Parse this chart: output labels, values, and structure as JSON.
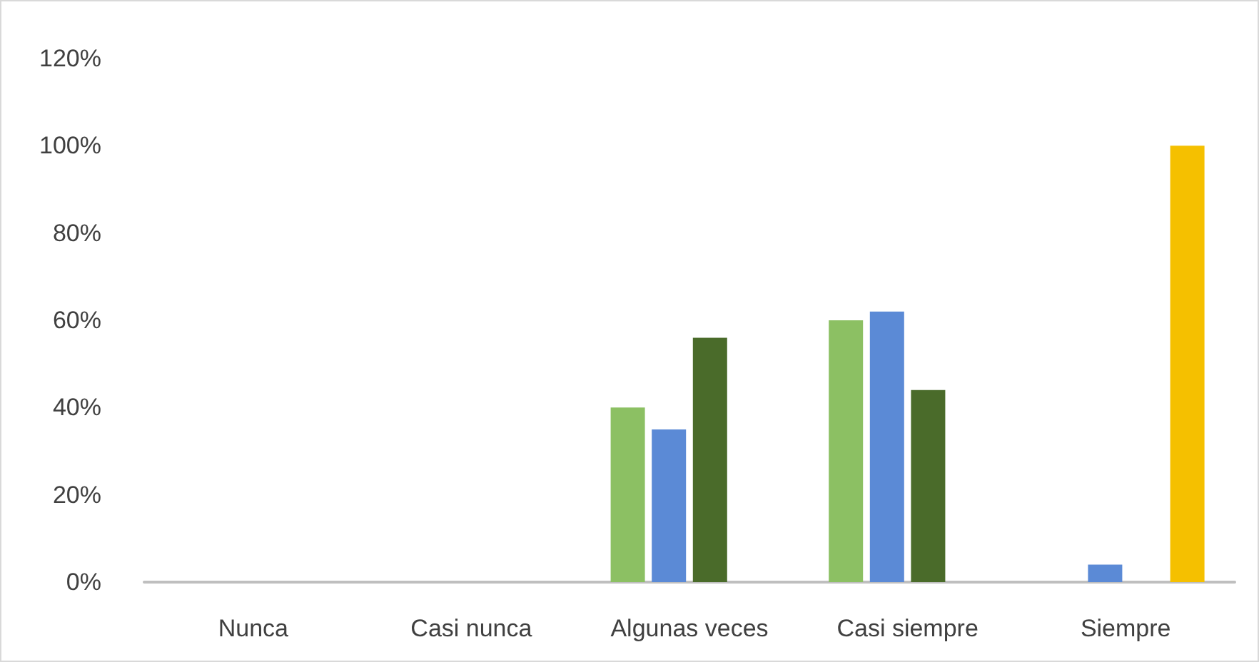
{
  "chart_data": {
    "type": "bar",
    "categories": [
      "Nunca",
      "Casi nunca",
      "Algunas veces",
      "Casi siempre",
      "Siempre"
    ],
    "series": [
      {
        "color": "#8cc063",
        "values": [
          0,
          0,
          40,
          60,
          0
        ]
      },
      {
        "color": "#5b8ad6",
        "values": [
          0,
          0,
          35,
          62,
          4
        ]
      },
      {
        "color": "#4a6b2a",
        "values": [
          0,
          0,
          56,
          44,
          0
        ]
      },
      {
        "color": "#f5c000",
        "values": [
          0,
          0,
          0,
          0,
          100
        ]
      }
    ],
    "ylim": [
      0,
      120
    ],
    "yticks": [
      {
        "value": 0,
        "label": "0%"
      },
      {
        "value": 20,
        "label": "20%"
      },
      {
        "value": 40,
        "label": "40%"
      },
      {
        "value": 60,
        "label": "60%"
      },
      {
        "value": 80,
        "label": "80%"
      },
      {
        "value": 100,
        "label": "100%"
      },
      {
        "value": 120,
        "label": "120%"
      }
    ],
    "grid": false
  }
}
